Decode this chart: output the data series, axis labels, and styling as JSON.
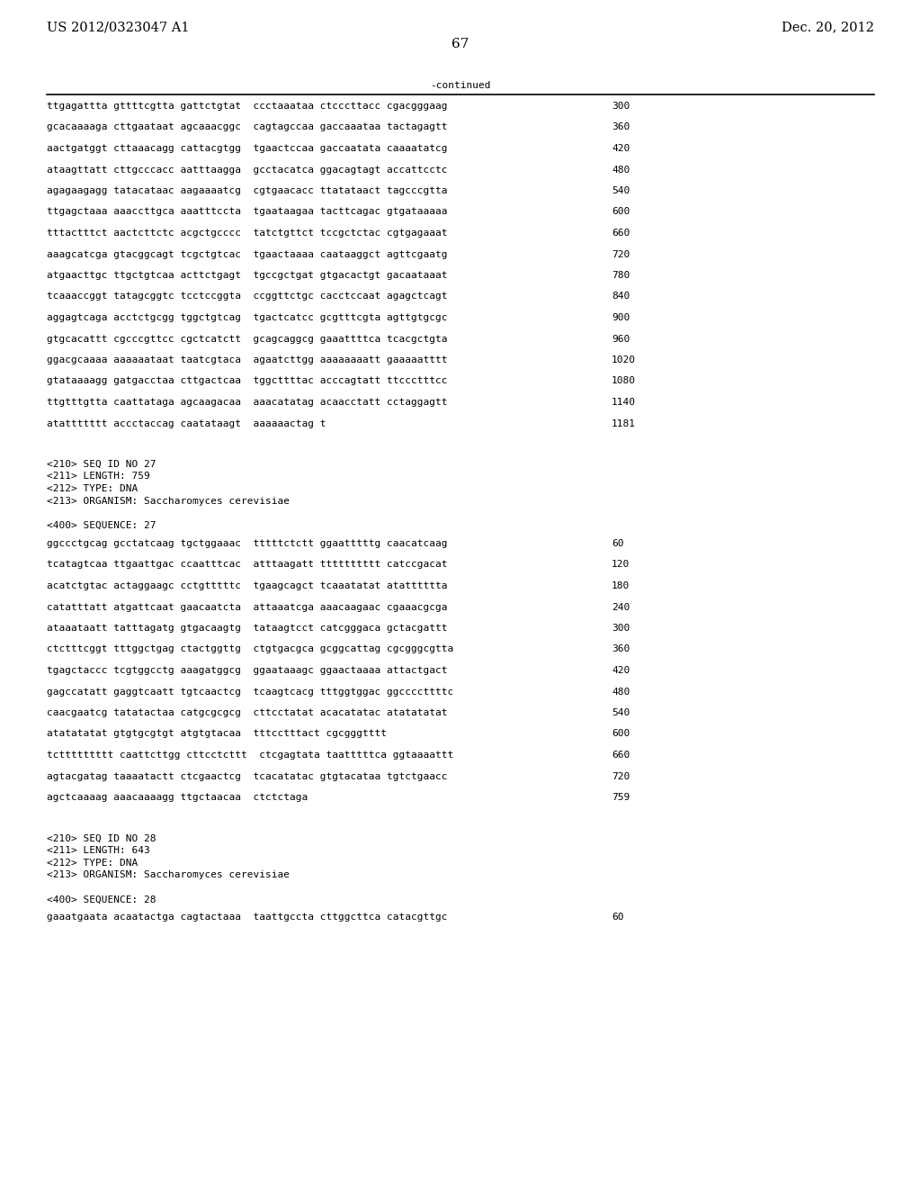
{
  "header_left": "US 2012/0323047 A1",
  "header_right": "Dec. 20, 2012",
  "page_number": "67",
  "continued_label": "-continued",
  "background_color": "#ffffff",
  "text_color": "#000000",
  "font_size_header": 10.5,
  "font_size_body": 8.0,
  "font_size_page": 11,
  "lines_section1": [
    [
      "ttgagattta gttttcgtta gattctgtat  ccctaaataa ctcccttacc cgacgggaag",
      "300"
    ],
    [
      "gcacaaaaga cttgaataat agcaaacggc  cagtagccaa gaccaaataa tactagagtt",
      "360"
    ],
    [
      "aactgatggt cttaaacagg cattacgtgg  tgaactccaa gaccaatata caaaatatcg",
      "420"
    ],
    [
      "ataagttatt cttgcccacc aatttaagga  gcctacatca ggacagtagt accattcctc",
      "480"
    ],
    [
      "agagaagagg tatacataac aagaaaatcg  cgtgaacacc ttatataact tagcccgtta",
      "540"
    ],
    [
      "ttgagctaaa aaaccttgca aaatttccta  tgaataagaa tacttcagac gtgataaaaa",
      "600"
    ],
    [
      "tttactttct aactcttctc acgctgcccc  tatctgttct tccgctctac cgtgagaaat",
      "660"
    ],
    [
      "aaagcatcga gtacggcagt tcgctgtcac  tgaactaaaa caataaggct agttcgaatg",
      "720"
    ],
    [
      "atgaacttgc ttgctgtcaa acttctgagt  tgccgctgat gtgacactgt gacaataaat",
      "780"
    ],
    [
      "tcaaaccggt tatagcggtc tcctccggta  ccggttctgc cacctccaat agagctcagt",
      "840"
    ],
    [
      "aggagtcaga acctctgcgg tggctgtcag  tgactcatcc gcgtttcgta agttgtgcgc",
      "900"
    ],
    [
      "gtgcacattt cgcccgttcc cgctcatctt  gcagcaggcg gaaattttca tcacgctgta",
      "960"
    ],
    [
      "ggacgcaaaa aaaaaataat taatcgtaca  agaatcttgg aaaaaaaatt gaaaaatttt",
      "1020"
    ],
    [
      "gtataaaagg gatgacctaa cttgactcaa  tggcttttac acccagtatt ttccctttcc",
      "1080"
    ],
    [
      "ttgtttgtta caattataga agcaagacaa  aaacatatag acaacctatt cctaggagtt",
      "1140"
    ],
    [
      "atattttttt accctaccag caatataagt  aaaaaactag t",
      "1181"
    ]
  ],
  "metadata_27": [
    "<210> SEQ ID NO 27",
    "<211> LENGTH: 759",
    "<212> TYPE: DNA",
    "<213> ORGANISM: Saccharomyces cerevisiae"
  ],
  "sequence_label_27": "<400> SEQUENCE: 27",
  "lines_section2": [
    [
      "ggccctgcag gcctatcaag tgctggaaac  tttttctctt ggaatttttg caacatcaag",
      "60"
    ],
    [
      "tcatagtcaa ttgaattgac ccaatttcac  atttaagatt tttttttttt catccgacat",
      "120"
    ],
    [
      "acatctgtac actaggaagc cctgtttttc  tgaagcagct tcaaatatat atatttttta",
      "180"
    ],
    [
      "catatttatt atgattcaat gaacaatcta  attaaatcga aaacaagaac cgaaacgcga",
      "240"
    ],
    [
      "ataaataatt tatttagatg gtgacaagtg  tataagtcct catcgggaca gctacgattt",
      "300"
    ],
    [
      "ctctttcggt tttggctgag ctactggttg  ctgtgacgca gcggcattag cgcgggcgtta",
      "360"
    ],
    [
      "tgagctaccc tcgtggcctg aaagatggcg  ggaataaagc ggaactaaaa attactgact",
      "420"
    ],
    [
      "gagccatatt gaggtcaatt tgtcaactcg  tcaagtcacg tttggtggac ggccccttttc",
      "480"
    ],
    [
      "caacgaatcg tatatactaa catgcgcgcg  cttcctatat acacatatac atatatatat",
      "540"
    ],
    [
      "atatatatat gtgtgcgtgt atgtgtacaa  tttcctttact cgcgggtttt",
      "600"
    ],
    [
      "tcttttttttt caattcttgg cttcctcttt  ctcgagtata taatttttca ggtaaaattt",
      "660"
    ],
    [
      "agtacgatag taaaatactt ctcgaactcg  tcacatatac gtgtacataa tgtctgaacc",
      "720"
    ],
    [
      "agctcaaaag aaacaaaagg ttgctaacaa  ctctctaga",
      "759"
    ]
  ],
  "metadata_28": [
    "<210> SEQ ID NO 28",
    "<211> LENGTH: 643",
    "<212> TYPE: DNA",
    "<213> ORGANISM: Saccharomyces cerevisiae"
  ],
  "sequence_label_28": "<400> SEQUENCE: 28",
  "lines_section3": [
    [
      "gaaatgaata acaatactga cagtactaaa  taattgccta cttggcttca catacgttgc",
      "60"
    ]
  ]
}
